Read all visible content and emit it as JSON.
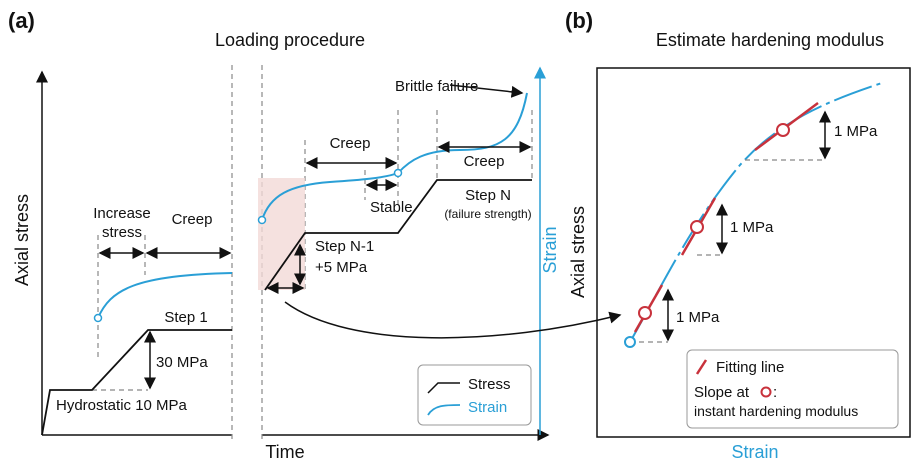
{
  "panel_a": {
    "label": "(a)",
    "title": "Loading procedure",
    "y_axis": "Axial stress",
    "x_axis": "Time",
    "y2_axis": "Strain",
    "annotations": [
      "Increase",
      "stress",
      "Creep",
      "Step 1",
      "30 MPa",
      "Hydrostatic 10 MPa",
      "Creep",
      "Stable",
      "Creep",
      "Step N-1",
      "+5 MPa",
      "Step N",
      "(failure strength)",
      "Brittle failure"
    ],
    "legend": [
      "Stress",
      "Strain"
    ]
  },
  "panel_b": {
    "label": "(b)",
    "title": "Estimate hardening modulus",
    "y_axis": "Axial stress",
    "x_axis": "Strain",
    "annotations": [
      "1 MPa",
      "1 MPa",
      "1 MPa"
    ],
    "legend": [
      "Fitting line",
      "Slope at",
      ":",
      "instant hardening modulus"
    ]
  }
}
